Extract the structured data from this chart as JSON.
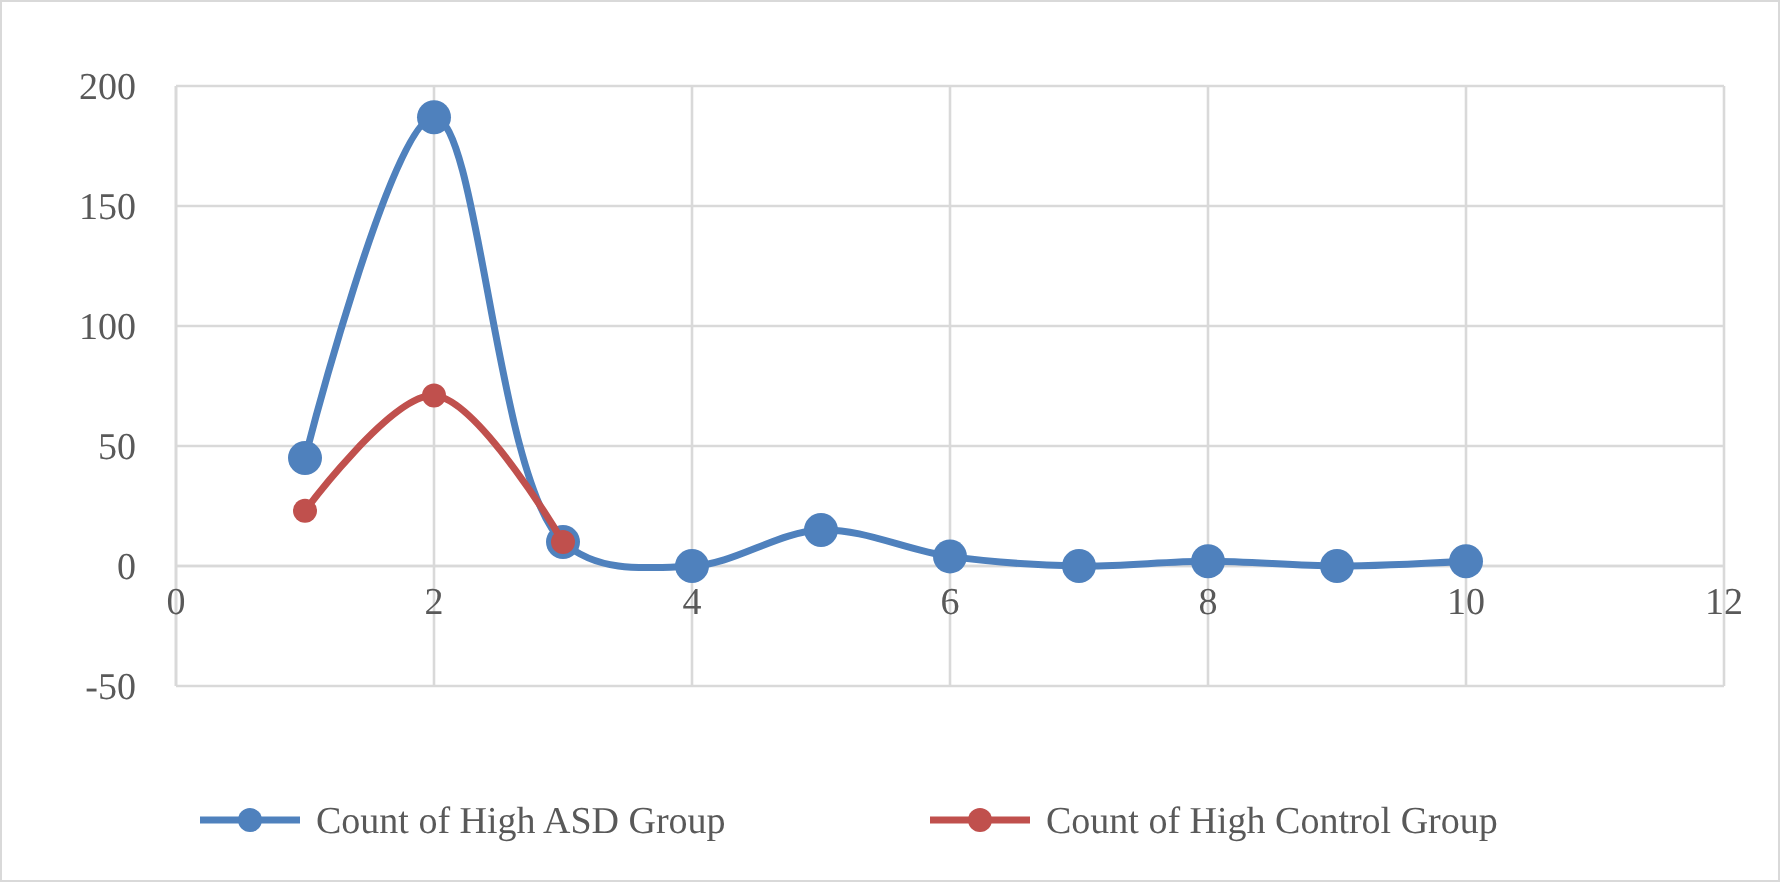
{
  "chart_data": {
    "type": "line",
    "x": [
      1,
      2,
      3,
      4,
      5,
      6,
      7,
      8,
      9,
      10
    ],
    "series": [
      {
        "name": "Count of High ASD Group",
        "color": "#4f81bd",
        "values": [
          45,
          187,
          10,
          0,
          15,
          4,
          0,
          2,
          0,
          2
        ]
      },
      {
        "name": "Count of High Control Group",
        "color": "#c0504d",
        "x": [
          1,
          2,
          3
        ],
        "values": [
          23,
          71,
          10
        ]
      }
    ],
    "xlim": [
      0,
      12
    ],
    "xticks": [
      0,
      2,
      4,
      6,
      8,
      10,
      12
    ],
    "ylim": [
      -50,
      200
    ],
    "yticks": [
      -50,
      0,
      50,
      100,
      150,
      200
    ],
    "grid": true,
    "legend": "bottom",
    "marker": "circle",
    "line_style": "solid"
  }
}
